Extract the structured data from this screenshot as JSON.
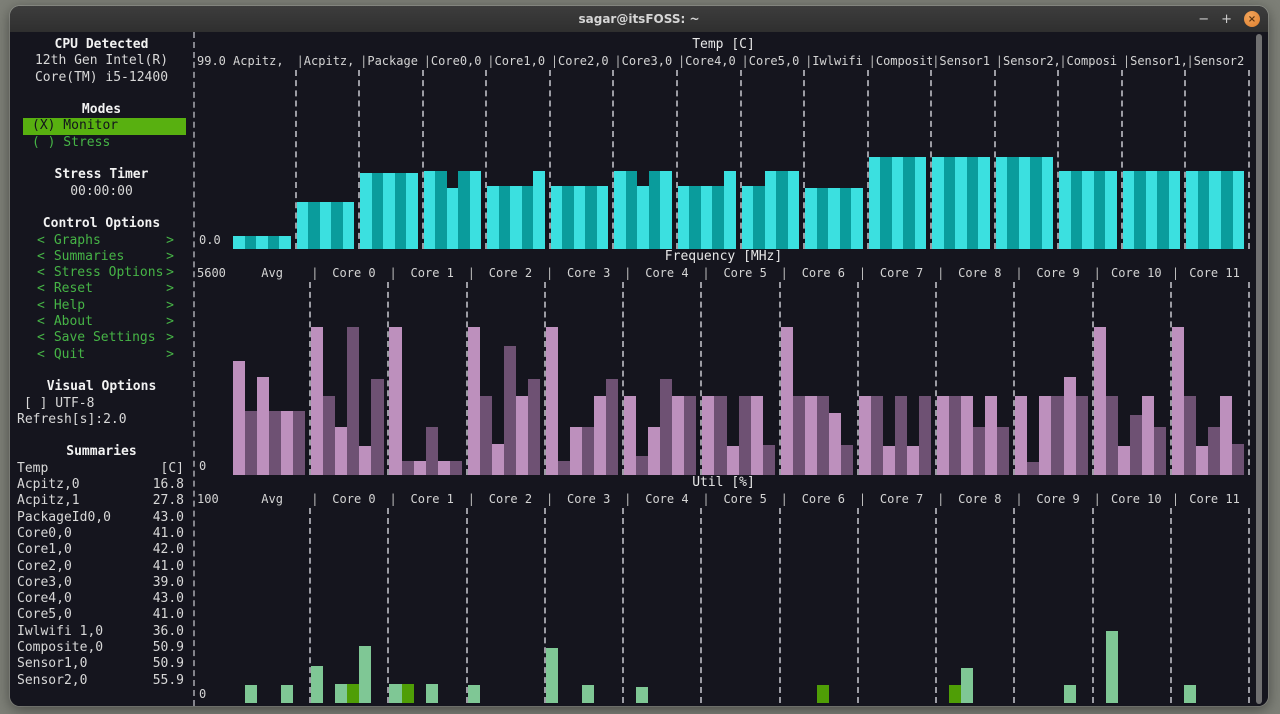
{
  "window": {
    "title": "sagar@itsFOSS: ~",
    "controls": {
      "minimize": "−",
      "maximize": "+",
      "close": "×"
    }
  },
  "colors": {
    "terminal_bg": "#15151e",
    "accent_green": "#46b446",
    "selected_bg": "#58b010",
    "temp_bar_light": "#3be0e0",
    "temp_bar_dark": "#0a9c9c",
    "freq_bar_light": "#bd90bd",
    "freq_bar_dark": "#6e5173",
    "util_bar_light": "#7fc795",
    "util_bar_dark": "#4f9e06"
  },
  "sidebar": {
    "cpu": {
      "heading": "CPU Detected",
      "line1": "12th Gen Intel(R)",
      "line2": "Core(TM) i5-12400"
    },
    "modes": {
      "heading": "Modes",
      "items": [
        {
          "label": "(X) Monitor",
          "selected": true
        },
        {
          "label": "( ) Stress",
          "selected": false
        }
      ]
    },
    "stress_timer": {
      "heading": "Stress Timer",
      "value": "00:00:00"
    },
    "control_options": {
      "heading": "Control Options",
      "bracket_left": "<",
      "bracket_right": ">",
      "items": [
        "Graphs",
        "Summaries",
        "Stress Options",
        "Reset",
        "Help",
        "About",
        "Save Settings",
        "Quit"
      ]
    },
    "visual_options": {
      "heading": "Visual Options",
      "utf8_label": "[ ] UTF-8",
      "refresh_label": "Refresh[s]:2.0"
    },
    "summaries": {
      "heading": "Summaries",
      "header_label": "Temp",
      "header_unit": "[C]",
      "rows": [
        {
          "label": "Acpitz,0",
          "value": "16.8"
        },
        {
          "label": "Acpitz,1",
          "value": "27.8"
        },
        {
          "label": "PackageId0,0",
          "value": "43.0"
        },
        {
          "label": "Core0,0",
          "value": "41.0"
        },
        {
          "label": "Core1,0",
          "value": "42.0"
        },
        {
          "label": "Core2,0",
          "value": "41.0"
        },
        {
          "label": "Core3,0",
          "value": "39.0"
        },
        {
          "label": "Core4,0",
          "value": "43.0"
        },
        {
          "label": "Core5,0",
          "value": "41.0"
        },
        {
          "label": "Iwlwifi 1,0",
          "value": "36.0"
        },
        {
          "label": "Composite,0",
          "value": "50.9"
        },
        {
          "label": "Sensor1,0",
          "value": "50.9"
        },
        {
          "label": "Sensor2,0",
          "value": "55.9"
        }
      ]
    }
  },
  "chart_data": [
    {
      "type": "bar",
      "title": "Temp [C]",
      "ylabel_top": "99.0",
      "ylabel_bottom": "0.0",
      "ymax": 99,
      "ylim": [
        0,
        99
      ],
      "grid": "dashed-column-dividers",
      "legend_position": "none",
      "header_align": "left",
      "alternate_shades": true,
      "bar_colors": {
        "light": "#3be0e0",
        "dark": "#0a9c9c"
      },
      "columns": [
        {
          "label": "Acpitz,",
          "stripes": [
            7,
            7,
            7,
            7,
            7
          ]
        },
        {
          "label": "Acpitz,",
          "stripes": [
            26,
            26,
            26,
            26,
            26
          ]
        },
        {
          "label": "Package",
          "stripes": [
            42,
            42,
            42,
            42,
            42
          ]
        },
        {
          "label": "Core0,0",
          "stripes": [
            43,
            43,
            34,
            43,
            43
          ]
        },
        {
          "label": "Core1,0",
          "stripes": [
            35,
            35,
            35,
            35,
            43
          ]
        },
        {
          "label": "Core2,0",
          "stripes": [
            35,
            35,
            35,
            35,
            35
          ]
        },
        {
          "label": "Core3,0",
          "stripes": [
            43,
            43,
            35,
            43,
            43
          ]
        },
        {
          "label": "Core4,0",
          "stripes": [
            35,
            35,
            35,
            35,
            43
          ]
        },
        {
          "label": "Core5,0",
          "stripes": [
            35,
            35,
            43,
            43,
            43
          ]
        },
        {
          "label": "Iwlwifi",
          "stripes": [
            34,
            34,
            34,
            34,
            34
          ]
        },
        {
          "label": "Composit",
          "stripes": [
            51,
            51,
            51,
            51,
            51
          ]
        },
        {
          "label": "Sensor1",
          "stripes": [
            51,
            51,
            51,
            51,
            51
          ]
        },
        {
          "label": "Sensor2,",
          "stripes": [
            51,
            51,
            51,
            51,
            51
          ]
        },
        {
          "label": "Composi",
          "stripes": [
            43,
            43,
            43,
            43,
            43
          ]
        },
        {
          "label": "Sensor1,",
          "stripes": [
            43,
            43,
            43,
            43,
            43
          ]
        },
        {
          "label": "Sensor2",
          "stripes": [
            43,
            43,
            43,
            43,
            43
          ]
        }
      ]
    },
    {
      "type": "bar",
      "title": "Frequency [MHz]",
      "ylabel_top": "5600",
      "ylabel_bottom": "0",
      "ymax": 5600,
      "ylim": [
        0,
        5600
      ],
      "grid": "dashed-column-dividers",
      "legend_position": "none",
      "header_align": "center",
      "alternate_shades": true,
      "bar_colors": {
        "light": "#bd90bd",
        "dark": "#6e5173"
      },
      "columns": [
        {
          "label": "Avg",
          "stripes": [
            3300,
            1850,
            2830,
            1850,
            1850,
            1850
          ]
        },
        {
          "label": "Core 0",
          "stripes": [
            4300,
            2300,
            1400,
            4300,
            850,
            2800
          ]
        },
        {
          "label": "Core 1",
          "stripes": [
            4300,
            400,
            400,
            1400,
            400,
            400
          ]
        },
        {
          "label": "Core 2",
          "stripes": [
            4300,
            2300,
            900,
            3750,
            2300,
            2800
          ]
        },
        {
          "label": "Core 3",
          "stripes": [
            4300,
            400,
            1400,
            1400,
            2300,
            2800
          ]
        },
        {
          "label": "Core 4",
          "stripes": [
            2300,
            550,
            1400,
            2800,
            2300,
            2300
          ]
        },
        {
          "label": "Core 5",
          "stripes": [
            2300,
            2300,
            850,
            2300,
            2300,
            860
          ]
        },
        {
          "label": "Core 6",
          "stripes": [
            4300,
            2300,
            2300,
            2300,
            1800,
            860
          ]
        },
        {
          "label": "Core 7",
          "stripes": [
            2300,
            2300,
            850,
            2300,
            850,
            2300
          ]
        },
        {
          "label": "Core 8",
          "stripes": [
            2300,
            2300,
            2300,
            1400,
            2300,
            1400
          ]
        },
        {
          "label": "Core 9",
          "stripes": [
            2300,
            390,
            2300,
            2300,
            2840,
            2300
          ]
        },
        {
          "label": "Core 10",
          "stripes": [
            4300,
            2300,
            850,
            1750,
            2300,
            1400
          ]
        },
        {
          "label": "Core 11",
          "stripes": [
            4300,
            2300,
            850,
            1400,
            2300,
            900
          ]
        }
      ]
    },
    {
      "type": "bar",
      "title": "Util [%]",
      "ylabel_top": "100",
      "ylabel_bottom": "0",
      "ymax": 100,
      "ylim": [
        0,
        100
      ],
      "grid": "dashed-column-dividers",
      "legend_position": "none",
      "header_align": "center",
      "alternate_shades": false,
      "bar_colors": {
        "light": "#7fc795",
        "dark": "#4f9e06"
      },
      "columns": [
        {
          "label": "Avg",
          "stripes": [
            0,
            9,
            0,
            0,
            9,
            0
          ]
        },
        {
          "label": "Core 0",
          "stripes": [
            19,
            0,
            10,
            {
              "v": 10,
              "shade": "dark"
            },
            29,
            0
          ]
        },
        {
          "label": "Core 1",
          "stripes": [
            10,
            {
              "v": 10,
              "shade": "dark"
            },
            0,
            10,
            0,
            0
          ]
        },
        {
          "label": "Core 2",
          "stripes": [
            9,
            0,
            0,
            0,
            0,
            0
          ]
        },
        {
          "label": "Core 3",
          "stripes": [
            28,
            0,
            0,
            9,
            0,
            0
          ]
        },
        {
          "label": "Core 4",
          "stripes": [
            0,
            8,
            0,
            0,
            0,
            0
          ]
        },
        {
          "label": "Core 5",
          "stripes": [
            0,
            0,
            0,
            0,
            0,
            0
          ]
        },
        {
          "label": "Core 6",
          "stripes": [
            0,
            0,
            0,
            {
              "v": 9,
              "shade": "dark"
            },
            0,
            0
          ]
        },
        {
          "label": "Core 7",
          "stripes": [
            0,
            0,
            0,
            0,
            0,
            0
          ]
        },
        {
          "label": "Core 8",
          "stripes": [
            0,
            {
              "v": 9,
              "shade": "dark"
            },
            18,
            0,
            0,
            0
          ]
        },
        {
          "label": "Core 9",
          "stripes": [
            0,
            0,
            0,
            0,
            9,
            0
          ]
        },
        {
          "label": "Core 10",
          "stripes": [
            0,
            37,
            0,
            0,
            0,
            0
          ]
        },
        {
          "label": "Core 11",
          "stripes": [
            0,
            9,
            0,
            0,
            0,
            0
          ]
        }
      ]
    }
  ]
}
